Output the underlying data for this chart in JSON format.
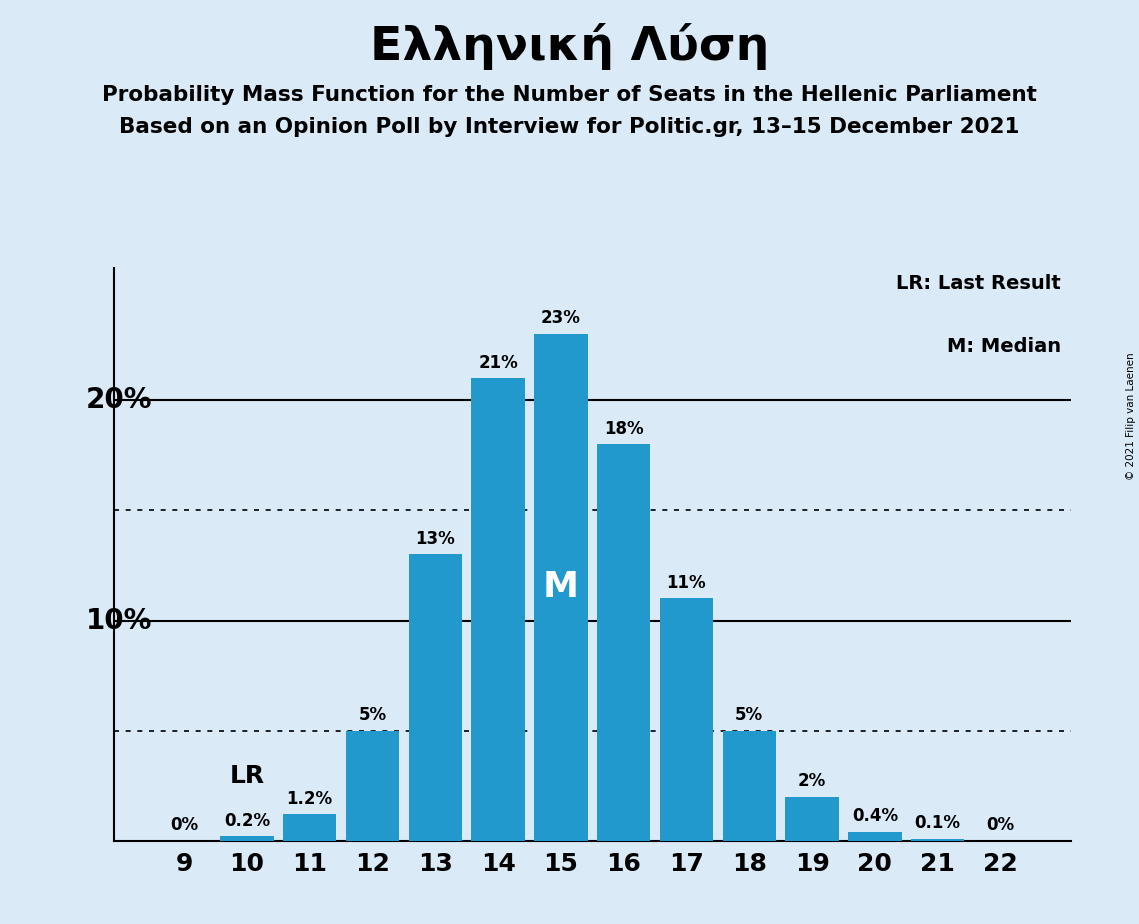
{
  "title": "Ελληνική Λύση",
  "subtitle1": "Probability Mass Function for the Number of Seats in the Hellenic Parliament",
  "subtitle2": "Based on an Opinion Poll by Interview for Politic.gr, 13–15 December 2021",
  "copyright": "© 2021 Filip van Laenen",
  "seats": [
    9,
    10,
    11,
    12,
    13,
    14,
    15,
    16,
    17,
    18,
    19,
    20,
    21,
    22
  ],
  "probabilities": [
    0.0,
    0.2,
    1.2,
    5.0,
    13.0,
    21.0,
    23.0,
    18.0,
    11.0,
    5.0,
    2.0,
    0.4,
    0.1,
    0.0
  ],
  "labels": [
    "0%",
    "0.2%",
    "1.2%",
    "5%",
    "13%",
    "21%",
    "23%",
    "18%",
    "11%",
    "5%",
    "2%",
    "0.4%",
    "0.1%",
    "0%"
  ],
  "bar_color": "#2299cc",
  "background_color": "#daeaf7",
  "median_seat": 15,
  "last_result_seat": 10,
  "legend_lr": "LR: Last Result",
  "legend_m": "M: Median",
  "median_label": "M",
  "lr_label": "LR",
  "ylim": [
    0,
    26
  ],
  "dotted_lines": [
    5,
    15
  ],
  "solid_lines": [
    10,
    20
  ]
}
